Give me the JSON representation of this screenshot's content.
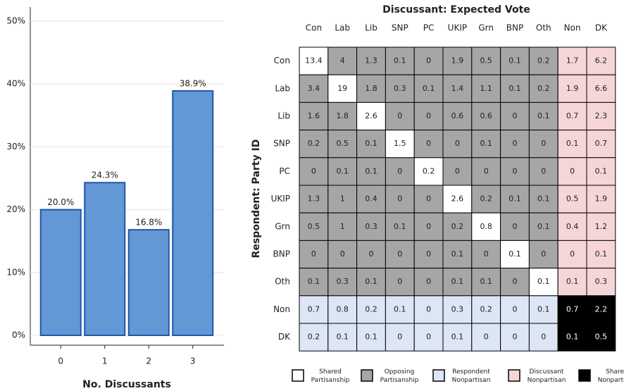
{
  "chart_data": [
    {
      "type": "bar",
      "x_label": "No. Discussants",
      "categories": [
        "0",
        "1",
        "2",
        "3"
      ],
      "values": [
        20.0,
        24.3,
        16.8,
        38.9
      ],
      "value_labels": [
        "20.0%",
        "24.3%",
        "16.8%",
        "38.9%"
      ],
      "color": "#6497d6",
      "edge_color": "#1f57a8",
      "ylim": [
        0,
        50
      ],
      "yticks": [
        {
          "value": 0,
          "label": "0%"
        },
        {
          "value": 10,
          "label": "10%"
        },
        {
          "value": 20,
          "label": "20%"
        },
        {
          "value": 30,
          "label": "30%"
        },
        {
          "value": 40,
          "label": "40%"
        },
        {
          "value": 50,
          "label": "50%"
        }
      ],
      "grid": true
    },
    {
      "type": "heatmap",
      "title": "Discussant: Expected Vote",
      "y_label": "Respondent: Party ID",
      "x_categories": [
        "Con",
        "Lab",
        "Lib",
        "SNP",
        "PC",
        "UKIP",
        "Grn",
        "BNP",
        "Oth",
        "Non",
        "DK"
      ],
      "y_categories": [
        "Con",
        "Lab",
        "Lib",
        "SNP",
        "PC",
        "UKIP",
        "Grn",
        "BNP",
        "Oth",
        "Non",
        "DK"
      ],
      "values": [
        [
          13.4,
          4,
          1.3,
          0.1,
          0,
          1.9,
          0.5,
          0.1,
          0.2,
          1.7,
          6.2
        ],
        [
          3.4,
          19,
          1.8,
          0.3,
          0.1,
          1.4,
          1.1,
          0.1,
          0.2,
          1.9,
          6.6
        ],
        [
          1.6,
          1.8,
          2.6,
          0,
          0,
          0.6,
          0.6,
          0,
          0.1,
          0.7,
          2.3
        ],
        [
          0.2,
          0.5,
          0.1,
          1.5,
          0,
          0,
          0.1,
          0,
          0,
          0.1,
          0.7
        ],
        [
          0,
          0.1,
          0.1,
          0,
          0.2,
          0,
          0,
          0,
          0,
          0,
          0.1
        ],
        [
          1.3,
          1,
          0.4,
          0,
          0,
          2.6,
          0.2,
          0.1,
          0.1,
          0.5,
          1.9
        ],
        [
          0.5,
          1,
          0.3,
          0.1,
          0,
          0.2,
          0.8,
          0,
          0.1,
          0.4,
          1.2
        ],
        [
          0,
          0,
          0,
          0,
          0,
          0.1,
          0,
          0.1,
          0,
          0,
          0.1
        ],
        [
          0.1,
          0.3,
          0.1,
          0,
          0,
          0.1,
          0.1,
          0,
          0.1,
          0.1,
          0.3
        ],
        [
          0.7,
          0.8,
          0.2,
          0.1,
          0,
          0.3,
          0.2,
          0,
          0.1,
          0.7,
          2.2
        ],
        [
          0.2,
          0.1,
          0.1,
          0,
          0,
          0.1,
          0,
          0,
          0,
          0.1,
          0.5
        ]
      ],
      "legend": [
        {
          "name": "Shared Partisanship",
          "color": "#ffffff"
        },
        {
          "name": "Opposing Partisanship",
          "color": "#a6a6a6"
        },
        {
          "name": "Respondent Nonpartisan",
          "color": "#dce6f4"
        },
        {
          "name": "Discussant Nonpartisan",
          "color": "#f5d5d8"
        },
        {
          "name": "Shared Nonpartisan",
          "color": "#000000"
        }
      ]
    }
  ]
}
